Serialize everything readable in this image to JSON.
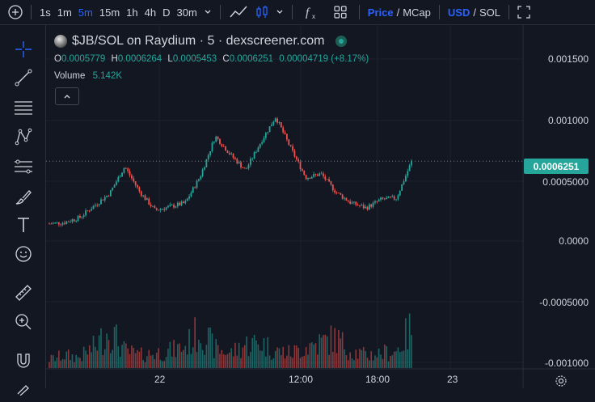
{
  "toolbar": {
    "intervals": [
      "1s",
      "1m",
      "5m",
      "15m",
      "1h",
      "4h",
      "D",
      "30m"
    ],
    "active_interval": "5m",
    "price_label": "Price",
    "mcap_label": "MCap",
    "usd_label": "USD",
    "sol_label": "SOL",
    "slash": "/"
  },
  "legend": {
    "title": "$JB/SOL on Raydium · 5 · dexscreener.com",
    "o_label": "O",
    "o": "0.0005779",
    "h_label": "H",
    "h": "0.0006264",
    "l_label": "L",
    "l": "0.0005453",
    "c_label": "C",
    "c": "0.0006251",
    "change": "0.00004719 (+8.17%)",
    "volume_label": "Volume",
    "volume": "5.142K"
  },
  "price_axis": [
    "0.001500",
    "0.001000",
    "0.0005000",
    "0.0000",
    "-0.0005000",
    "-0.001000"
  ],
  "current_price": "0.0006251",
  "time_axis": [
    "22",
    "12:00",
    "18:00",
    "23"
  ],
  "colors": {
    "up": "#26a69a",
    "down": "#ef5350",
    "accent": "#2962ff",
    "bg": "#131722"
  },
  "chart_data": {
    "type": "candlestick",
    "price_series": [
      0.00011,
      0.00012,
      0.00016,
      0.00026,
      0.00036,
      0.00058,
      0.00037,
      0.00022,
      0.00025,
      0.00028,
      0.0005,
      0.00083,
      0.00068,
      0.00055,
      0.00078,
      0.00099,
      0.00073,
      0.00049,
      0.00052,
      0.00037,
      0.00028,
      0.00024,
      0.00031,
      0.00032,
      0.00062
    ],
    "volume_series": [
      0.2,
      0.3,
      0.25,
      0.5,
      0.9,
      0.4,
      0.3,
      0.35,
      0.4,
      0.5,
      0.9,
      0.45,
      0.35,
      0.55,
      0.6,
      0.4,
      0.35,
      0.5,
      0.6,
      0.7,
      0.4,
      0.3,
      0.35,
      0.4,
      0.95
    ]
  }
}
